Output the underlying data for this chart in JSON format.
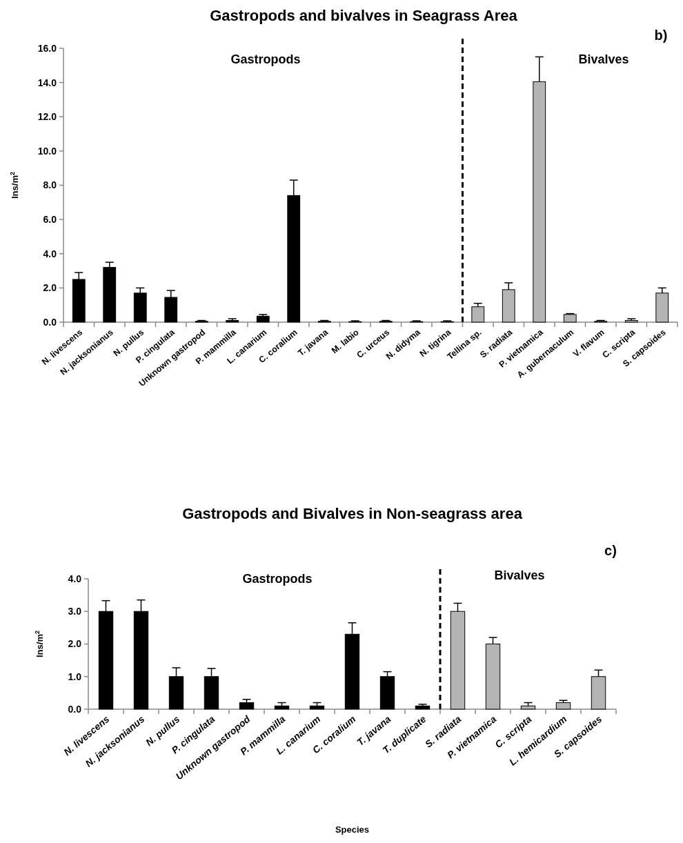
{
  "chart_data": [
    {
      "type": "bar",
      "title": "Gastropods and bivalves in Seagrass Area",
      "ylabel": "Ins/m$^{2}$",
      "categories": [
        "N. livescens",
        "N. jacksonianus",
        "N. pullus",
        "P. cingulata",
        "Unknown gastropod",
        "P. mammilla",
        "L. canarium",
        "C. coralium",
        "T. javana",
        "M. labio",
        "C. urceus",
        "N. didyma",
        "N. tigrina",
        "Tellina sp.",
        "S. radiata",
        "P. vietnamica",
        "A. gubernaculum",
        "V. flavum",
        "C. scripta",
        "S. capsoides"
      ],
      "values": [
        2.5,
        3.2,
        1.7,
        1.45,
        0.05,
        0.1,
        0.35,
        7.4,
        0.05,
        0.03,
        0.05,
        0.03,
        0.03,
        0.9,
        1.9,
        14.05,
        0.45,
        0.05,
        0.1,
        1.7
      ],
      "errors": [
        [
          2.5,
          2.9
        ],
        [
          3.2,
          3.5
        ],
        [
          1.7,
          2.0
        ],
        [
          1.45,
          1.85
        ],
        [
          0.05,
          0.1
        ],
        [
          0.1,
          0.2
        ],
        [
          0.35,
          0.45
        ],
        [
          7.4,
          8.3
        ],
        [
          0.05,
          0.1
        ],
        [
          0.03,
          0.08
        ],
        [
          0.05,
          0.1
        ],
        [
          0.03,
          0.08
        ],
        [
          0.03,
          0.08
        ],
        [
          0.9,
          1.1
        ],
        [
          1.9,
          2.3
        ],
        [
          14.05,
          15.5
        ],
        [
          0.45,
          0.5
        ],
        [
          0.05,
          0.1
        ],
        [
          0.1,
          0.2
        ],
        [
          1.7,
          2.0
        ]
      ],
      "colors": [
        "#000000",
        "#000000",
        "#000000",
        "#000000",
        "#000000",
        "#000000",
        "#000000",
        "#000000",
        "#000000",
        "#000000",
        "#000000",
        "#000000",
        "#000000",
        "#b4b4b4",
        "#b4b4b4",
        "#b4b4b4",
        "#b4b4b4",
        "#b4b4b4",
        "#b4b4b4",
        "#b4b4b4"
      ],
      "ylim": [
        0,
        16
      ],
      "yticks": [
        {
          "value": 0,
          "label": "0.0"
        },
        {
          "value": 2,
          "label": "2.0"
        },
        {
          "value": 4,
          "label": "4.0"
        },
        {
          "value": 6,
          "label": "6.0"
        },
        {
          "value": 8,
          "label": "8.0"
        },
        {
          "value": 10,
          "label": "10.0"
        },
        {
          "value": 12,
          "label": "12.0"
        },
        {
          "value": 14,
          "label": "14.0"
        },
        {
          "value": 16,
          "label": "16.0"
        }
      ],
      "annotations": [
        "Gastropods",
        "Bivalves",
        "b)"
      ]
    },
    {
      "type": "bar",
      "title": "Gastropods and Bivalves in Non-seagrass area",
      "ylabel": "Ins/m$^{2}$",
      "xlabel": "Species",
      "categories": [
        "N. livescens",
        "N. jacksonianus",
        "N. pullus",
        "P. cingulata",
        "Unknown gastropod",
        "P. mammilla",
        "L. canarium",
        "C. coralium",
        "T. javana",
        "T. duplicate",
        "S. radiata",
        "P. vietnamica",
        "C. scripta",
        "L. hemicardium",
        "S. capsoides"
      ],
      "values": [
        3.0,
        3.0,
        1.0,
        1.0,
        0.2,
        0.1,
        0.1,
        2.3,
        1.0,
        0.1,
        3.0,
        2.0,
        0.1,
        0.2,
        1.0
      ],
      "errors": [
        [
          3.0,
          3.33
        ],
        [
          3.0,
          3.35
        ],
        [
          1.0,
          1.27
        ],
        [
          1.0,
          1.25
        ],
        [
          0.2,
          0.3
        ],
        [
          0.1,
          0.2
        ],
        [
          0.1,
          0.2
        ],
        [
          2.3,
          2.65
        ],
        [
          1.0,
          1.15
        ],
        [
          0.1,
          0.15
        ],
        [
          3.0,
          3.25
        ],
        [
          2.0,
          2.2
        ],
        [
          0.1,
          0.2
        ],
        [
          0.2,
          0.27
        ],
        [
          1.0,
          1.2
        ]
      ],
      "colors": [
        "#000000",
        "#000000",
        "#000000",
        "#000000",
        "#000000",
        "#000000",
        "#000000",
        "#000000",
        "#000000",
        "#000000",
        "#b4b4b4",
        "#b4b4b4",
        "#b4b4b4",
        "#b4b4b4",
        "#b4b4b4"
      ],
      "ylim": [
        0,
        4
      ],
      "yticks": [
        {
          "value": 0,
          "label": "0.0"
        },
        {
          "value": 1,
          "label": "1.0"
        },
        {
          "value": 2,
          "label": "2.0"
        },
        {
          "value": 3,
          "label": "3.0"
        },
        {
          "value": 4,
          "label": "4.0"
        }
      ],
      "annotations": [
        "Gastropods",
        "Bivalves",
        "c)"
      ]
    }
  ]
}
